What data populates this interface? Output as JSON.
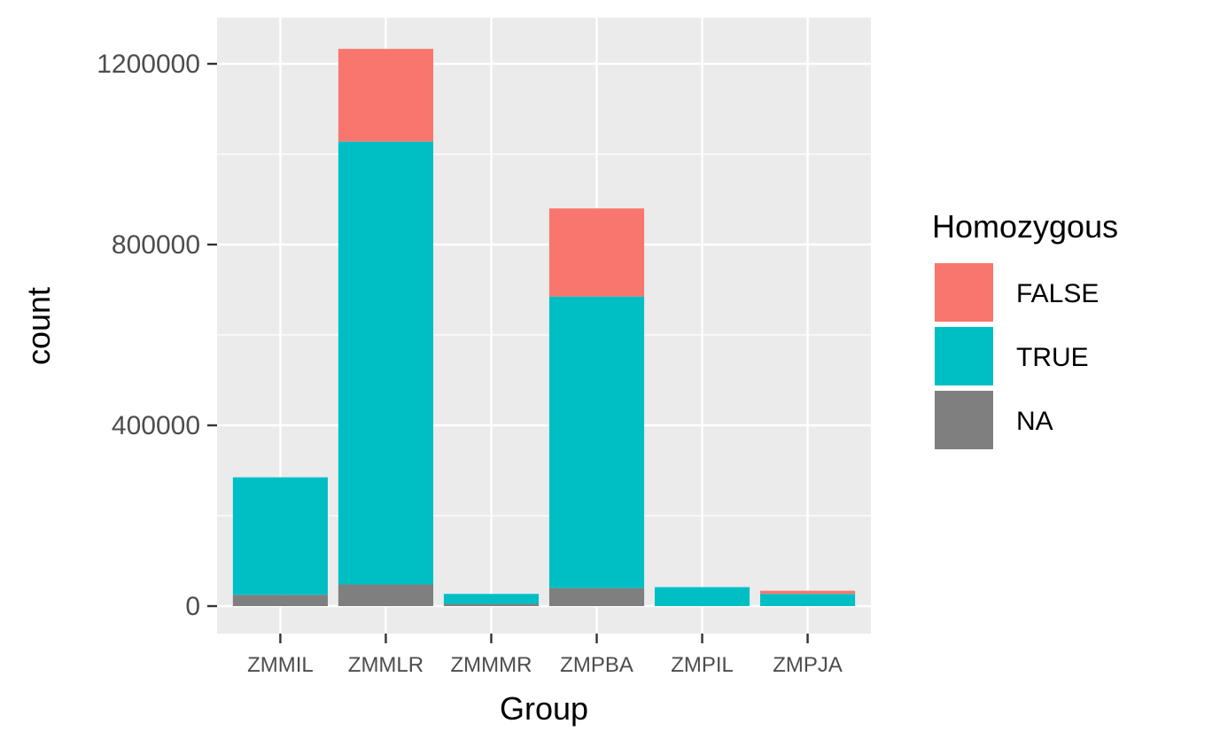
{
  "chart_data": {
    "type": "bar",
    "stacked": true,
    "categories": [
      "ZMMIL",
      "ZMMLR",
      "ZMMMR",
      "ZMPBA",
      "ZMPIL",
      "ZMPJA"
    ],
    "series": [
      {
        "name": "FALSE",
        "color": "#F8766D",
        "values": [
          0,
          205000,
          0,
          195000,
          0,
          7000
        ]
      },
      {
        "name": "TRUE",
        "color": "#00BFC4",
        "values": [
          260000,
          980000,
          22000,
          645000,
          42000,
          27000
        ]
      },
      {
        "name": "NA",
        "color": "#7F7F7F",
        "values": [
          25000,
          48000,
          5000,
          40000,
          0,
          0
        ]
      }
    ],
    "xlabel": "Group",
    "ylabel": "count",
    "ylim": [
      0,
      1250000
    ],
    "y_ticks": [
      0,
      400000,
      800000,
      1200000
    ],
    "y_tick_labels": [
      "0",
      "400000",
      "800000",
      "1200000"
    ],
    "legend": {
      "title": "Homozygous",
      "position": "right"
    },
    "grid": true,
    "panel_background": "#EBEBEB",
    "grid_color": "#FFFFFF"
  }
}
